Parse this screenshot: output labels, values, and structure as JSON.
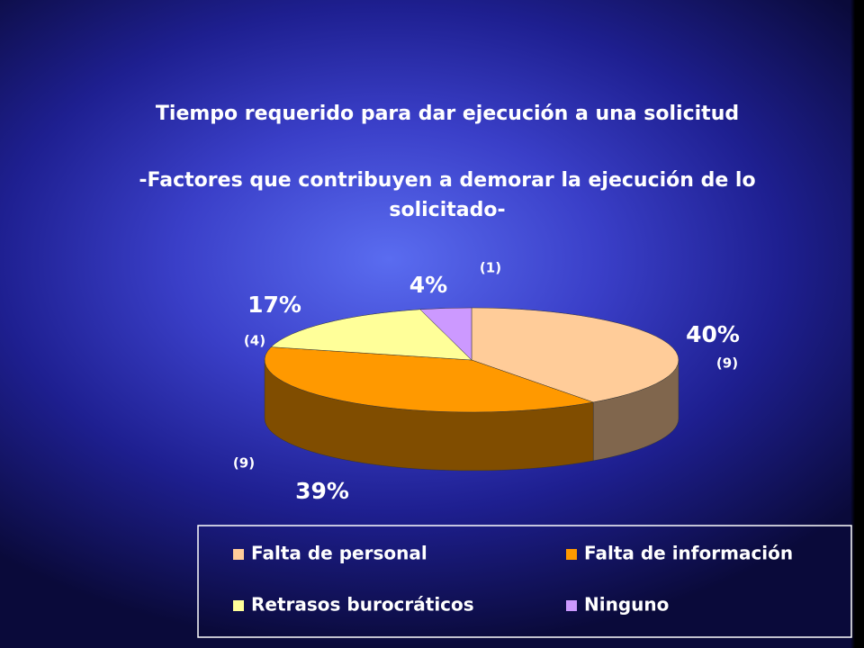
{
  "chart_data": {
    "type": "pie3d",
    "title": "Tiempo requerido para dar ejecución a una solicitud",
    "subtitle": "-Factores que contribuyen a demorar la ejecución de lo solicitado-",
    "categories": [
      "Falta de personal",
      "Falta de información",
      "Retrasos burocráticos",
      "Ninguno"
    ],
    "values": [
      40,
      39,
      17,
      4
    ],
    "value_labels": [
      "40%",
      "39%",
      "17%",
      "4%"
    ],
    "counts": [
      9,
      9,
      4,
      1
    ],
    "count_labels": [
      "(9)",
      "(9)",
      "(4)",
      "(1)"
    ],
    "colors": [
      "#ffcc99",
      "#ff9900",
      "#ffff99",
      "#cc99ff"
    ],
    "legend": "bottom"
  }
}
